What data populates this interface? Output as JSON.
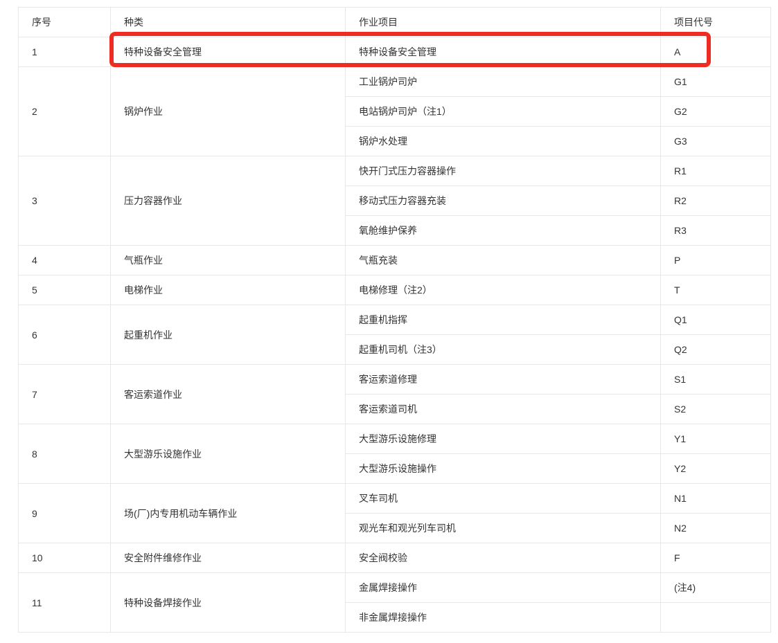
{
  "table": {
    "columns": [
      "序号",
      "种类",
      "作业项目",
      "项目代号"
    ],
    "groups": [
      {
        "no": "1",
        "category": "特种设备安全管理",
        "highlighted": true,
        "items": [
          {
            "project": "特种设备安全管理",
            "code": "A"
          }
        ]
      },
      {
        "no": "2",
        "category": "锅炉作业",
        "items": [
          {
            "project": "工业锅炉司炉",
            "code": "G1"
          },
          {
            "project": "电站锅炉司炉（注1）",
            "code": "G2"
          },
          {
            "project": "锅炉水处理",
            "code": "G3"
          }
        ]
      },
      {
        "no": "3",
        "category": "压力容器作业",
        "items": [
          {
            "project": "快开门式压力容器操作",
            "code": "R1"
          },
          {
            "project": "移动式压力容器充装",
            "code": "R2"
          },
          {
            "project": "氧舱维护保养",
            "code": "R3"
          }
        ]
      },
      {
        "no": "4",
        "category": "气瓶作业",
        "items": [
          {
            "project": "气瓶充装",
            "code": "P"
          }
        ]
      },
      {
        "no": "5",
        "category": "电梯作业",
        "items": [
          {
            "project": "电梯修理（注2）",
            "code": "T"
          }
        ]
      },
      {
        "no": "6",
        "category": "起重机作业",
        "items": [
          {
            "project": "起重机指挥",
            "code": "Q1"
          },
          {
            "project": "起重机司机（注3）",
            "code": "Q2"
          }
        ]
      },
      {
        "no": "7",
        "category": "客运索道作业",
        "items": [
          {
            "project": "客运索道修理",
            "code": "S1"
          },
          {
            "project": "客运索道司机",
            "code": "S2"
          }
        ]
      },
      {
        "no": "8",
        "category": "大型游乐设施作业",
        "items": [
          {
            "project": "大型游乐设施修理",
            "code": "Y1"
          },
          {
            "project": "大型游乐设施操作",
            "code": "Y2"
          }
        ]
      },
      {
        "no": "9",
        "category": "场(厂)内专用机动车辆作业",
        "items": [
          {
            "project": "叉车司机",
            "code": "N1"
          },
          {
            "project": "观光车和观光列车司机",
            "code": "N2"
          }
        ]
      },
      {
        "no": "10",
        "category": "安全附件维修作业",
        "items": [
          {
            "project": "安全阀校验",
            "code": "F"
          }
        ]
      },
      {
        "no": "11",
        "category": "特种设备焊接作业",
        "items": [
          {
            "project": "金属焊接操作",
            "code": "(注4)"
          },
          {
            "project": "非金属焊接操作",
            "code": ""
          }
        ]
      }
    ],
    "highlight_color": "#ee2c24",
    "border_color": "#e7e7e7",
    "text_color": "#333333"
  }
}
